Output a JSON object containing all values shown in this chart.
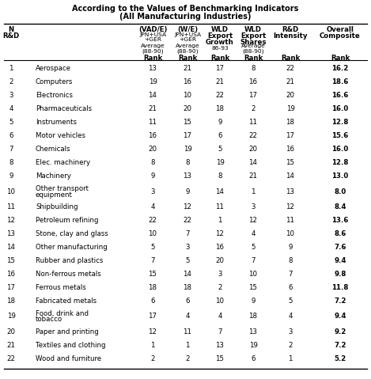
{
  "title_line1": "According to the Values of Benchmarking Indicators",
  "title_line2": "(All Manufacturing Industries)",
  "rows": [
    [
      1,
      "Aerospace",
      "13",
      "21",
      "17",
      "8",
      "22",
      "16.2"
    ],
    [
      2,
      "Computers",
      "19",
      "16",
      "21",
      "16",
      "21",
      "18.6"
    ],
    [
      3,
      "Electronics",
      "14",
      "10",
      "22",
      "17",
      "20",
      "16.6"
    ],
    [
      4,
      "Pharmaceuticals",
      "21",
      "20",
      "18",
      "2",
      "19",
      "16.0"
    ],
    [
      5,
      "Instruments",
      "11",
      "15",
      "9",
      "11",
      "18",
      "12.8"
    ],
    [
      6,
      "Motor vehicles",
      "16",
      "17",
      "6",
      "22",
      "17",
      "15.6"
    ],
    [
      7,
      "Chemicals",
      "20",
      "19",
      "5",
      "20",
      "16",
      "16.0"
    ],
    [
      8,
      "Elec. machinery",
      "8",
      "8",
      "19",
      "14",
      "15",
      "12.8"
    ],
    [
      9,
      "Machinery",
      "9",
      "13",
      "8",
      "21",
      "14",
      "13.0"
    ],
    [
      10,
      "Other transport\nequipment",
      "3",
      "9",
      "14",
      "1",
      "13",
      "8.0"
    ],
    [
      11,
      "Shipbuilding",
      "4",
      "12",
      "11",
      "3",
      "12",
      "8.4"
    ],
    [
      12,
      "Petroleum refining",
      "22",
      "22",
      "1",
      "12",
      "11",
      "13.6"
    ],
    [
      13,
      "Stone, clay and glass",
      "10",
      "7",
      "12",
      "4",
      "10",
      "8.6"
    ],
    [
      14,
      "Other manufacturing",
      "5",
      "3",
      "16",
      "5",
      "9",
      "7.6"
    ],
    [
      15,
      "Rubber and plastics",
      "7",
      "5",
      "20",
      "7",
      "8",
      "9.4"
    ],
    [
      16,
      "Non-ferrous metals",
      "15",
      "14",
      "3",
      "10",
      "7",
      "9.8"
    ],
    [
      17,
      "Ferrous metals",
      "18",
      "18",
      "2",
      "15",
      "6",
      "11.8"
    ],
    [
      18,
      "Fabricated metals",
      "6",
      "6",
      "10",
      "9",
      "5",
      "7.2"
    ],
    [
      19,
      "Food, drink and\ntobacco",
      "17",
      "4",
      "4",
      "18",
      "4",
      "9.4"
    ],
    [
      20,
      "Paper and printing",
      "12",
      "11",
      "7",
      "13",
      "3",
      "9.2"
    ],
    [
      21,
      "Textiles and clothing",
      "1",
      "1",
      "13",
      "19",
      "2",
      "7.2"
    ],
    [
      22,
      "Wood and furniture",
      "2",
      "2",
      "15",
      "6",
      "1",
      "5.2"
    ]
  ],
  "bg_color": "#ffffff",
  "text_color": "#000000",
  "figw": 4.69,
  "figh": 4.79,
  "dpi": 100
}
